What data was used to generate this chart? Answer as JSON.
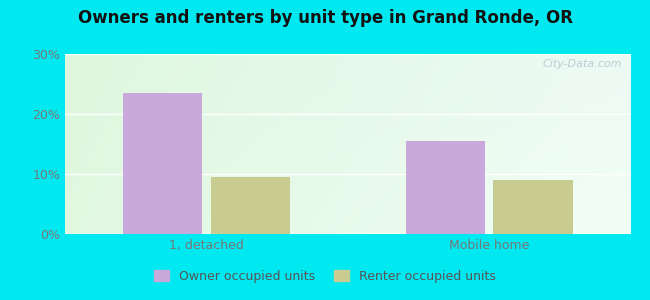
{
  "title": "Owners and renters by unit type in Grand Ronde, OR",
  "categories": [
    "1, detached",
    "Mobile home"
  ],
  "owner_values": [
    23.5,
    15.5
  ],
  "renter_values": [
    9.5,
    9.0
  ],
  "owner_color": "#c9a8dc",
  "renter_color": "#c8cc90",
  "ylim": [
    0,
    30
  ],
  "yticks": [
    0,
    10,
    20,
    30
  ],
  "ytick_labels": [
    "0%",
    "10%",
    "20%",
    "30%"
  ],
  "bar_width": 0.28,
  "outer_color": "#00e8f0",
  "watermark": "City-Data.com",
  "legend_labels": [
    "Owner occupied units",
    "Renter occupied units"
  ],
  "bg_topleft": [
    0.87,
    0.97,
    0.87
  ],
  "bg_topright": [
    0.93,
    0.98,
    0.96
  ],
  "bg_bottomleft": [
    0.88,
    0.97,
    0.88
  ],
  "bg_bottomright": [
    0.95,
    1.0,
    0.97
  ]
}
